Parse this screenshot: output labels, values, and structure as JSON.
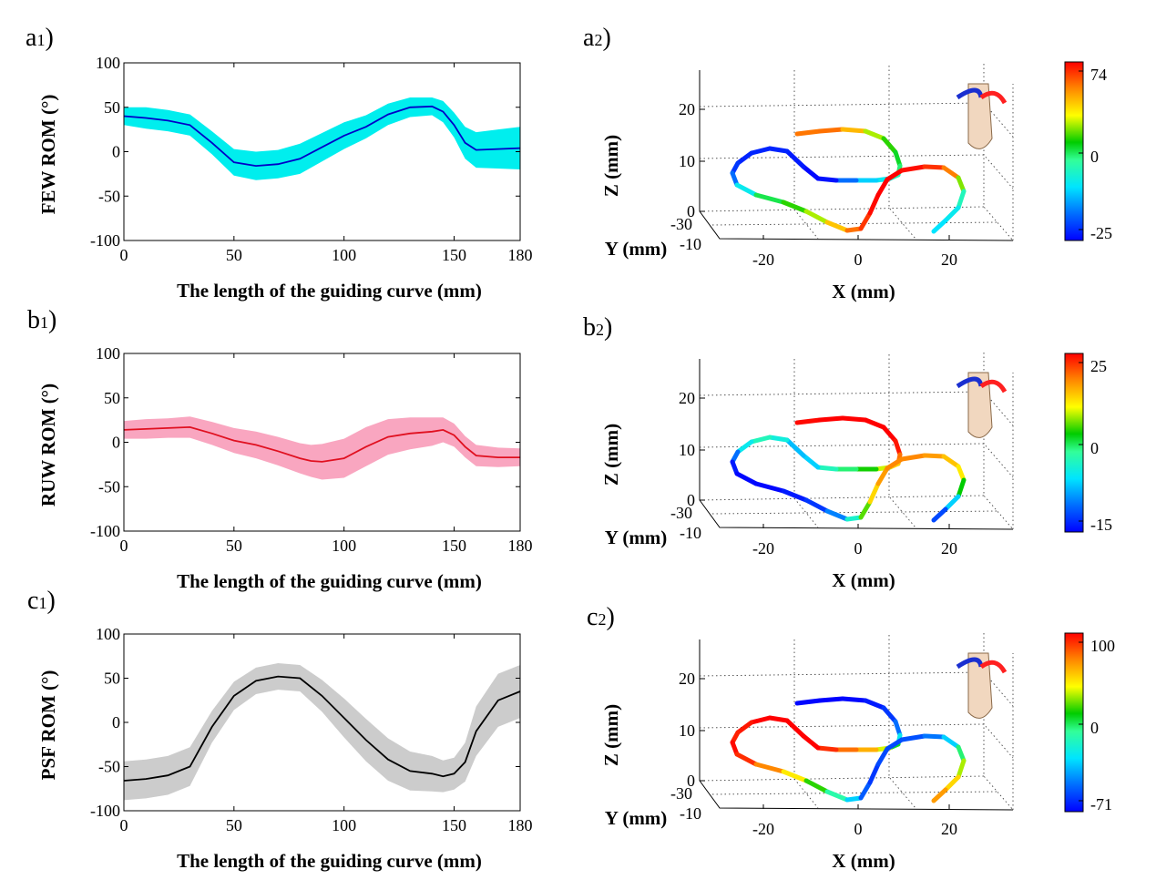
{
  "panels_2d": [
    {
      "label_main": "a",
      "label_sub": "1",
      "label_close": ")",
      "ylabel": "FEW ROM (°)",
      "xlabel": "The length of the guiding curve (mm)",
      "xticks": [
        "0",
        "50",
        "100",
        "150",
        "180"
      ],
      "yticks": [
        "100",
        "50",
        "0",
        "-50",
        "-100"
      ],
      "line_color": "#0000c8",
      "band_color": "#00eeee"
    },
    {
      "label_main": "b",
      "label_sub": "1",
      "label_close": ")",
      "ylabel": "RUW ROM (°)",
      "xlabel": "The length of the guiding curve (mm)",
      "xticks": [
        "0",
        "50",
        "100",
        "150",
        "180"
      ],
      "yticks": [
        "100",
        "50",
        "0",
        "-50",
        "-100"
      ],
      "line_color": "#e01020",
      "band_color": "#f9a6c0"
    },
    {
      "label_main": "c",
      "label_sub": "1",
      "label_close": ")",
      "ylabel": "PSF ROM (°)",
      "xlabel": "The length of the guiding curve (mm)",
      "xticks": [
        "0",
        "50",
        "100",
        "150",
        "180"
      ],
      "yticks": [
        "100",
        "50",
        "0",
        "-50",
        "-100"
      ],
      "line_color": "#000000",
      "band_color": "#cccccc"
    }
  ],
  "panels_3d": [
    {
      "label_main": "a",
      "label_sub": "2",
      "label_close": ")",
      "zlabel": "Z (mm)",
      "ylabel": "Y (mm)",
      "xlabel": "X (mm)",
      "zticks": [
        "20",
        "10",
        "0"
      ],
      "yticks": [
        "-30",
        "-10"
      ],
      "xticks": [
        "-20",
        "0",
        "20"
      ],
      "colorbar_ticks": [
        "74",
        "0",
        "-25"
      ]
    },
    {
      "label_main": "b",
      "label_sub": "2",
      "label_close": ")",
      "zlabel": "Z (mm)",
      "ylabel": "Y (mm)",
      "xlabel": "X (mm)",
      "zticks": [
        "20",
        "10",
        "0"
      ],
      "yticks": [
        "-30",
        "-10"
      ],
      "xticks": [
        "-20",
        "0",
        "20"
      ],
      "colorbar_ticks": [
        "25",
        "0",
        "-15"
      ]
    },
    {
      "label_main": "c",
      "label_sub": "2",
      "label_close": ")",
      "zlabel": "Z (mm)",
      "ylabel": "Y (mm)",
      "xlabel": "X (mm)",
      "zticks": [
        "20",
        "10",
        "0"
      ],
      "yticks": [
        "-30",
        "-10"
      ],
      "xticks": [
        "-20",
        "0",
        "20"
      ],
      "colorbar_ticks": [
        "100",
        "0",
        "-71"
      ]
    }
  ],
  "chart_data": [
    {
      "type": "line",
      "series": [
        {
          "x": [
            0,
            10,
            20,
            30,
            40,
            50,
            60,
            70,
            80,
            90,
            100,
            110,
            120,
            130,
            140,
            145,
            150,
            155,
            160,
            170,
            180
          ],
          "y": [
            40,
            38,
            35,
            30,
            10,
            -12,
            -16,
            -14,
            -8,
            5,
            18,
            28,
            42,
            50,
            51,
            45,
            30,
            10,
            2,
            3,
            4
          ],
          "band": [
            10,
            12,
            12,
            12,
            13,
            15,
            16,
            16,
            17,
            16,
            15,
            13,
            12,
            11,
            10,
            12,
            14,
            18,
            20,
            22,
            24
          ]
        }
      ],
      "xlim": [
        0,
        180
      ],
      "ylim": [
        -100,
        100
      ],
      "grid": false
    },
    {
      "type": "line",
      "series": [
        {
          "x": [
            0,
            10,
            20,
            30,
            40,
            50,
            60,
            70,
            80,
            85,
            90,
            100,
            110,
            120,
            130,
            140,
            145,
            150,
            155,
            160,
            170,
            180
          ],
          "y": [
            14,
            15,
            16,
            17,
            10,
            2,
            -3,
            -10,
            -18,
            -21,
            -22,
            -18,
            -5,
            6,
            10,
            12,
            14,
            8,
            -5,
            -15,
            -17,
            -17
          ],
          "band": [
            10,
            11,
            11,
            12,
            13,
            14,
            15,
            16,
            17,
            18,
            20,
            22,
            22,
            20,
            18,
            16,
            14,
            13,
            12,
            12,
            11,
            10
          ]
        }
      ],
      "xlim": [
        0,
        180
      ],
      "ylim": [
        -100,
        100
      ],
      "grid": false
    },
    {
      "type": "line",
      "series": [
        {
          "x": [
            0,
            10,
            20,
            30,
            40,
            50,
            60,
            70,
            80,
            90,
            100,
            110,
            120,
            130,
            140,
            145,
            150,
            155,
            160,
            170,
            180
          ],
          "y": [
            -66,
            -64,
            -60,
            -50,
            -5,
            30,
            47,
            52,
            50,
            30,
            5,
            -20,
            -42,
            -55,
            -58,
            -61,
            -58,
            -45,
            -10,
            25,
            35
          ],
          "band": [
            22,
            22,
            22,
            22,
            18,
            16,
            15,
            15,
            15,
            18,
            22,
            24,
            24,
            22,
            20,
            18,
            18,
            22,
            28,
            30,
            30
          ]
        }
      ],
      "xlim": [
        0,
        180
      ],
      "ylim": [
        -100,
        100
      ],
      "grid": false
    }
  ]
}
